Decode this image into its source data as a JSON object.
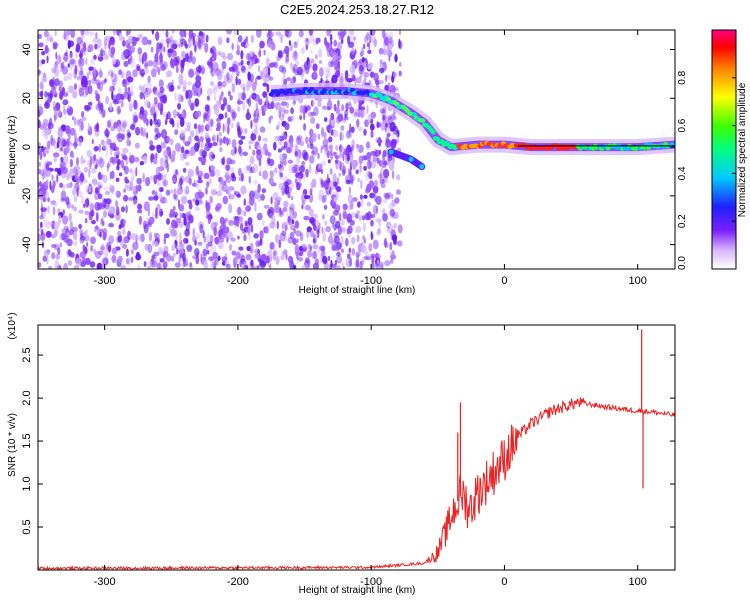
{
  "title": "C2E5.2024.253.18.27.R12",
  "chart_data": [
    {
      "type": "heatmap",
      "xlabel": "Height of straight line (km)",
      "ylabel": "Frequency (Hz)",
      "xlim": [
        -350,
        128
      ],
      "ylim": [
        -50,
        48
      ],
      "xticks": [
        -300,
        -200,
        -100,
        0,
        100
      ],
      "yticks": [
        -40,
        -20,
        0,
        20,
        40
      ],
      "colorbar": {
        "label": "Normalized spectral amplitude",
        "range": [
          0,
          1
        ],
        "ticks": [
          "0.0",
          "0.2",
          "0.4",
          "0.6",
          "0.8"
        ]
      },
      "ridge": [
        {
          "x": -175,
          "y": 22
        },
        {
          "x": -150,
          "y": 23
        },
        {
          "x": -120,
          "y": 23
        },
        {
          "x": -100,
          "y": 22
        },
        {
          "x": -85,
          "y": 19
        },
        {
          "x": -70,
          "y": 14
        },
        {
          "x": -60,
          "y": 10
        },
        {
          "x": -50,
          "y": 3
        },
        {
          "x": -40,
          "y": 0
        },
        {
          "x": -20,
          "y": 1
        },
        {
          "x": 0,
          "y": 1
        },
        {
          "x": 20,
          "y": 0
        },
        {
          "x": 60,
          "y": 0
        },
        {
          "x": 100,
          "y": 0
        },
        {
          "x": 128,
          "y": 1
        }
      ],
      "branch": [
        {
          "x": -85,
          "y": -2
        },
        {
          "x": -70,
          "y": -5
        },
        {
          "x": -62,
          "y": -8
        }
      ]
    },
    {
      "type": "line",
      "xlabel": "Height of straight line (km)",
      "ylabel": "SNR (10 * v/v)",
      "scale_label": "(x10⁴)",
      "xlim": [
        -350,
        128
      ],
      "ylim": [
        0,
        2.85
      ],
      "xticks": [
        -300,
        -200,
        -100,
        0,
        100
      ],
      "yticks": [
        "0.5",
        "1.0",
        "1.5",
        "2.0",
        "2.5"
      ],
      "color": "#ee2222",
      "anchors": [
        {
          "x": -350,
          "y": 0.02
        },
        {
          "x": -100,
          "y": 0.03
        },
        {
          "x": -60,
          "y": 0.08
        },
        {
          "x": -50,
          "y": 0.2
        },
        {
          "x": -45,
          "y": 0.4
        },
        {
          "x": -38,
          "y": 0.7
        },
        {
          "x": -32,
          "y": 0.9
        },
        {
          "x": -26,
          "y": 0.7
        },
        {
          "x": -20,
          "y": 0.9
        },
        {
          "x": -10,
          "y": 1.1
        },
        {
          "x": 0,
          "y": 1.3
        },
        {
          "x": 10,
          "y": 1.55
        },
        {
          "x": 20,
          "y": 1.7
        },
        {
          "x": 35,
          "y": 1.85
        },
        {
          "x": 55,
          "y": 1.95
        },
        {
          "x": 75,
          "y": 1.9
        },
        {
          "x": 95,
          "y": 1.86
        },
        {
          "x": 110,
          "y": 1.84
        },
        {
          "x": 128,
          "y": 1.8
        }
      ],
      "spikes": [
        {
          "x": -33,
          "y": 1.95
        },
        {
          "x": -35,
          "y": 1.6
        },
        {
          "x": 103,
          "y": 2.8
        },
        {
          "x": 104,
          "y": 0.95
        }
      ]
    }
  ]
}
